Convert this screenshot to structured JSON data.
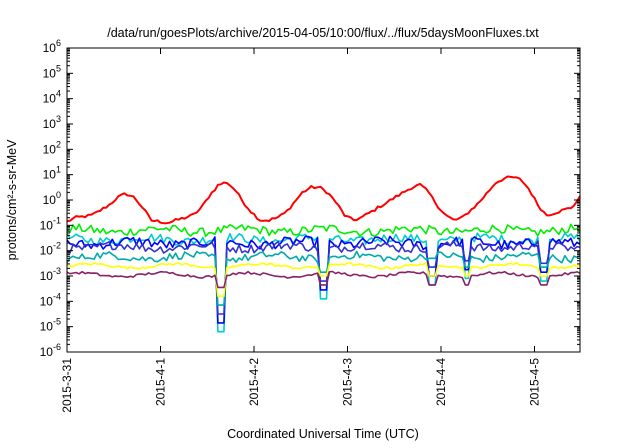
{
  "chart_data": {
    "type": "line",
    "title": "/data/run/goesPlots/archive/2015-04-05/10:00/flux/../flux/5daysMoonFluxes.txt",
    "xlabel": "Coordinated Universal Time (UTC)",
    "ylabel": "protons/cm²-s-sr-MeV",
    "y_scale": "log",
    "ylim_exp": [
      -6,
      6
    ],
    "y_tick_exponents": [
      -6,
      -5,
      -4,
      -3,
      -2,
      -1,
      0,
      1,
      2,
      3,
      4,
      5,
      6
    ],
    "x_range_days": [
      "2015-3-31",
      "2015-4-5 10:00"
    ],
    "x_ticks": [
      "2015-3-31",
      "2015-4-1",
      "2015-4-2",
      "2015-4-3",
      "2015-4-4",
      "2015-4-5"
    ],
    "grid": false,
    "series": [
      {
        "color": "#ff0000",
        "values_log10": [
          -0.85,
          -0.7,
          -0.65,
          -0.6,
          -0.4,
          -0.2,
          0.1,
          0.25,
          0.1,
          -0.3,
          -0.8,
          -0.85,
          -0.9,
          -0.8,
          -0.7,
          -0.6,
          -0.3,
          0.2,
          0.6,
          0.7,
          0.4,
          -0.1,
          -0.5,
          -0.8,
          -0.8,
          -0.7,
          -0.5,
          -0.1,
          0.3,
          0.5,
          0.5,
          0.3,
          -0.1,
          -0.6,
          -0.8,
          -0.7,
          -0.5,
          -0.3,
          -0.1,
          0.1,
          0.3,
          0.5,
          0.6,
          0.3,
          -0.2,
          -0.6,
          -0.8,
          -0.7,
          -0.4,
          -0.1,
          0.3,
          0.7,
          0.85,
          0.9,
          0.8,
          0.4,
          -0.2,
          -0.6,
          -0.5,
          -0.4,
          -0.3,
          0.1
        ]
      },
      {
        "color": "#00ee00",
        "base_log10": -1.2,
        "amplitude": 0.35
      },
      {
        "color": "#00cccc",
        "base_log10": -1.55,
        "amplitude": 0.35
      },
      {
        "color": "#0000ff",
        "base_log10": -1.7,
        "amplitude": 0.4
      },
      {
        "color": "#3333cc",
        "base_log10": -1.85,
        "amplitude": 0.35
      },
      {
        "color": "#00aaaa",
        "base_log10": -2.25,
        "amplitude": 0.3
      },
      {
        "color": "#ffff00",
        "base_log10": -2.6,
        "amplitude": 0.1
      },
      {
        "color": "#882266",
        "base_log10": -2.95,
        "amplitude": 0.1
      }
    ],
    "dips": [
      {
        "day": 1.65,
        "log10": -5.2
      },
      {
        "day": 2.75,
        "log10": -3.9
      },
      {
        "day": 3.9,
        "log10": -3.35
      },
      {
        "day": 4.27,
        "log10": -3.1
      },
      {
        "day": 5.1,
        "log10": -3.2
      }
    ]
  }
}
